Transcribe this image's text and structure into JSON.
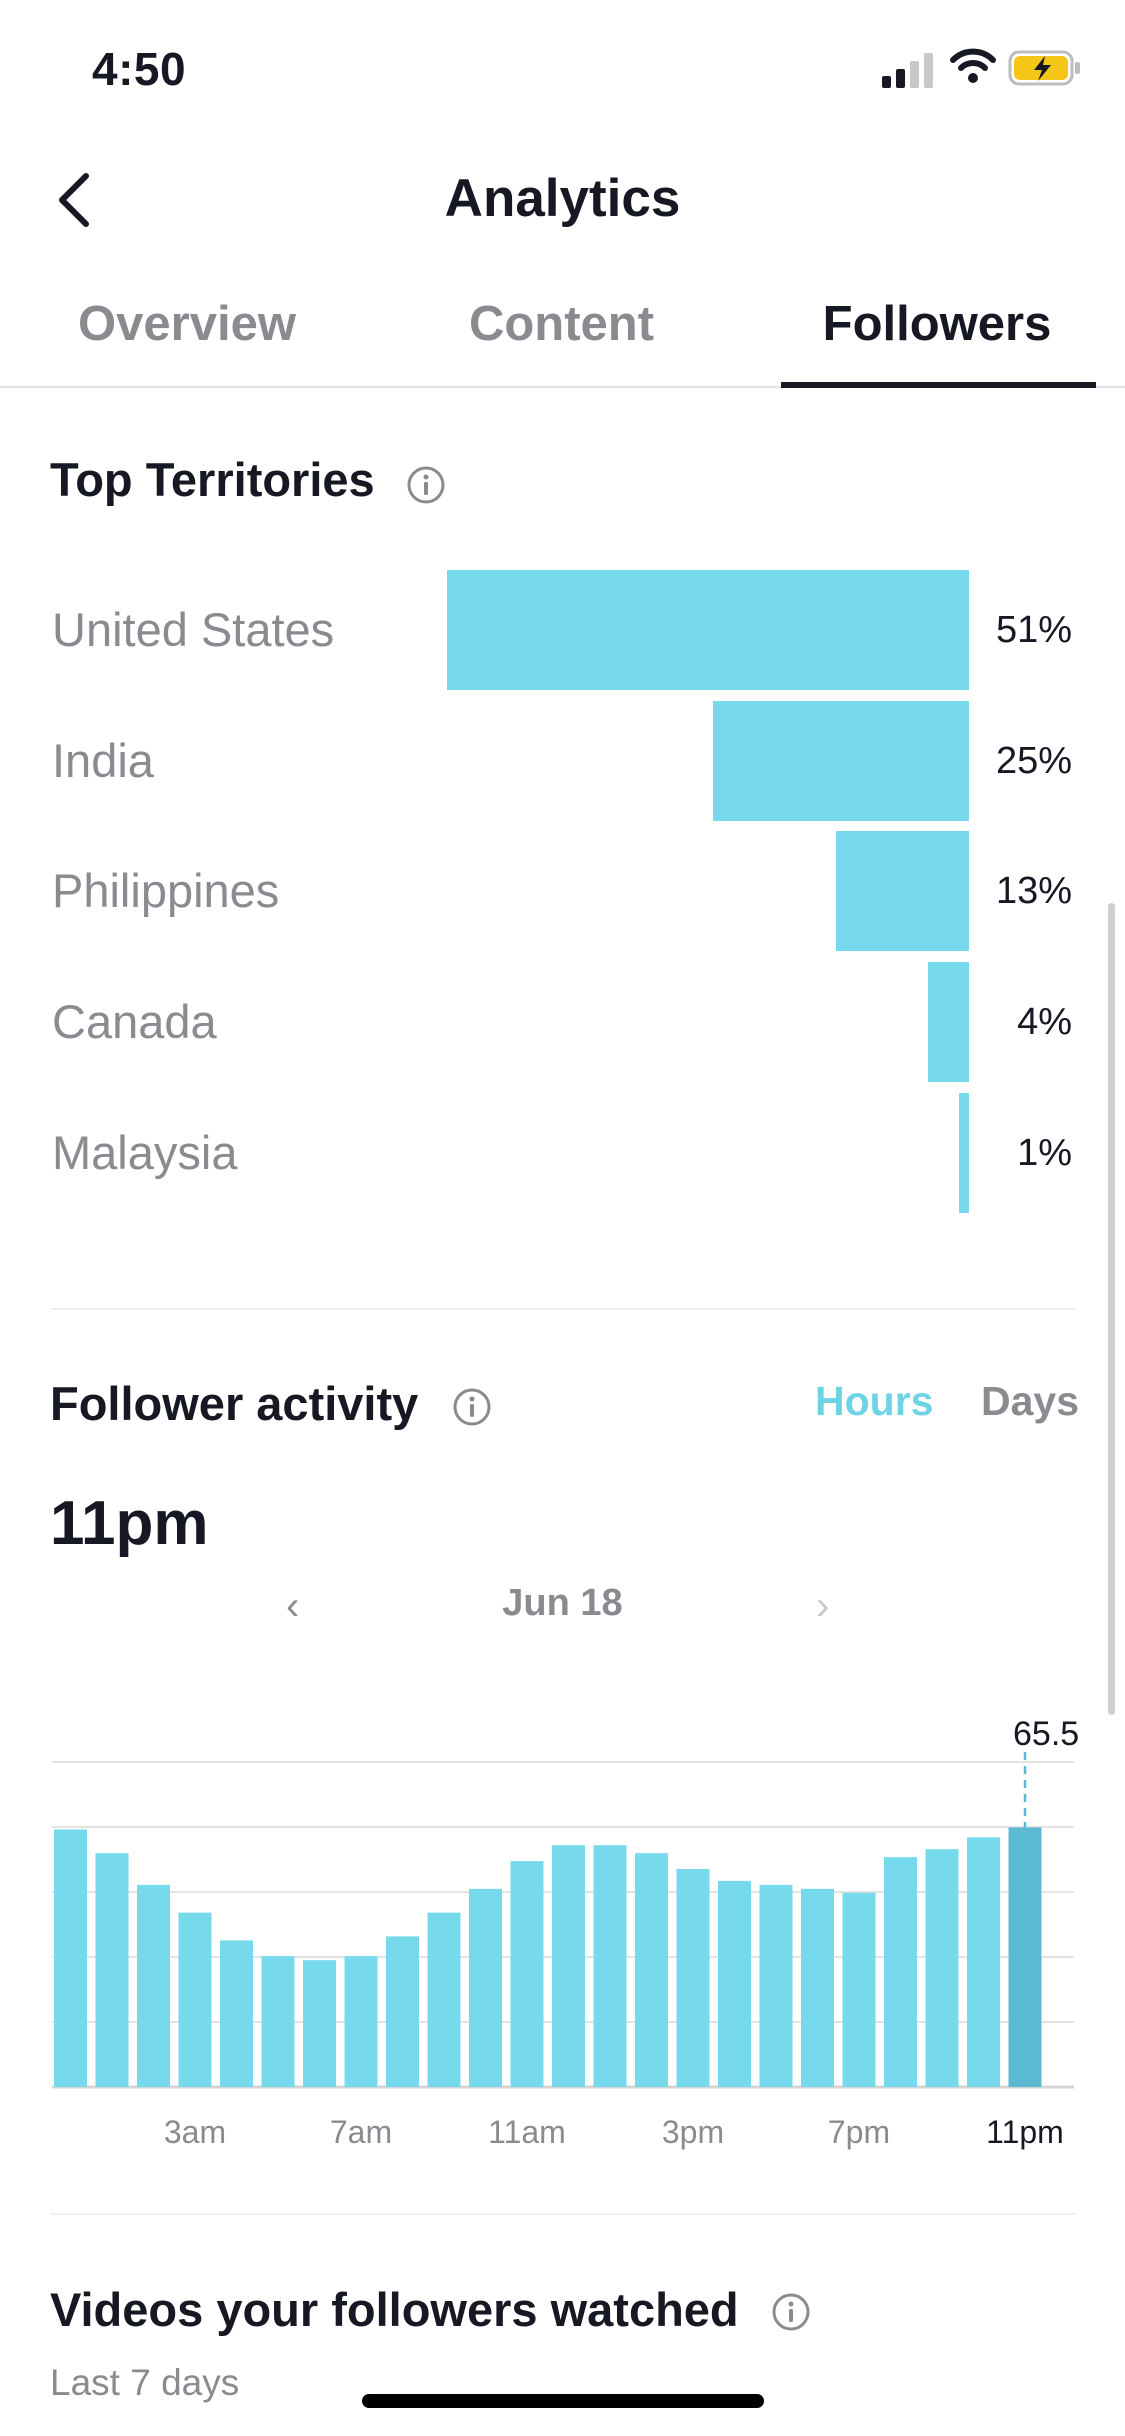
{
  "status_bar": {
    "time": "4:50"
  },
  "nav": {
    "title": "Analytics"
  },
  "tabs": [
    {
      "label": "Overview",
      "active": false
    },
    {
      "label": "Content",
      "active": false
    },
    {
      "label": "Followers",
      "active": true
    }
  ],
  "top_territories": {
    "title": "Top Territories",
    "items": [
      {
        "name": "United States",
        "percent_label": "51%",
        "value": 51
      },
      {
        "name": "India",
        "percent_label": "25%",
        "value": 25
      },
      {
        "name": "Philippines",
        "percent_label": "13%",
        "value": 13
      },
      {
        "name": "Canada",
        "percent_label": "4%",
        "value": 4
      },
      {
        "name": "Malaysia",
        "percent_label": "1%",
        "value": 1
      }
    ]
  },
  "follower_activity": {
    "title": "Follower activity",
    "toggle": {
      "hours": "Hours",
      "days": "Days",
      "selected": "hours"
    },
    "selected_hour": "11pm",
    "date": "Jun 18",
    "selected_value_label": "65.5"
  },
  "chart_data": {
    "type": "bar",
    "x_tick_labels": [
      "3am",
      "7am",
      "11am",
      "3pm",
      "7pm",
      "11pm"
    ],
    "values": [
      65,
      59,
      51,
      44,
      37,
      33,
      32,
      33,
      38,
      44,
      50,
      57,
      61,
      61,
      59,
      55,
      52,
      51,
      50,
      49,
      58,
      60,
      63,
      65.5
    ],
    "selected_index": 23,
    "ylim": [
      0,
      82
    ],
    "grid": true,
    "colors": {
      "bar": "#77d9ec",
      "selected": "#5bbad2",
      "grid": "#e3e3e4"
    }
  },
  "videos_watched": {
    "title": "Videos your followers watched",
    "subtitle": "Last 7 days"
  },
  "colors": {
    "accent": "#6fd3e6",
    "bar": "#77d9ec",
    "text": "#161823",
    "muted": "#8a8b91"
  }
}
